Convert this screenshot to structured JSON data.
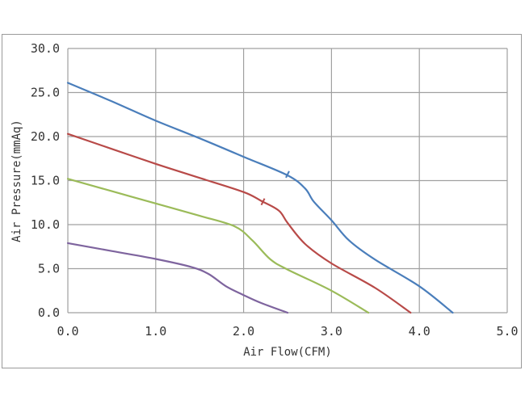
{
  "chart_data": {
    "type": "line",
    "title": "",
    "xlabel": "Air Flow(CFM)",
    "ylabel": "Air Pressure(mmAq)",
    "xlim": [
      0,
      5
    ],
    "ylim": [
      0,
      30
    ],
    "x_ticks": [
      "0.0",
      "1.0",
      "2.0",
      "3.0",
      "4.0",
      "5.0"
    ],
    "y_ticks": [
      "0.0",
      "5.0",
      "10.0",
      "15.0",
      "20.0",
      "25.0",
      "30.0"
    ],
    "grid": true,
    "legend": "none",
    "series": [
      {
        "color": "#4a7ebb",
        "points": [
          [
            0.0,
            26.1
          ],
          [
            0.5,
            24.0
          ],
          [
            1.0,
            21.8
          ],
          [
            1.5,
            19.8
          ],
          [
            2.0,
            17.7
          ],
          [
            2.5,
            15.6
          ],
          [
            2.7,
            14.1
          ],
          [
            2.8,
            12.6
          ],
          [
            3.0,
            10.5
          ],
          [
            3.2,
            8.2
          ],
          [
            3.5,
            6.0
          ],
          [
            4.0,
            3.0
          ],
          [
            4.38,
            0.0
          ]
        ],
        "marker_at": [
          2.5,
          15.7
        ]
      },
      {
        "color": "#b84a48",
        "points": [
          [
            0.0,
            20.3
          ],
          [
            0.5,
            18.6
          ],
          [
            1.0,
            16.9
          ],
          [
            1.5,
            15.3
          ],
          [
            2.0,
            13.7
          ],
          [
            2.2,
            12.7
          ],
          [
            2.4,
            11.6
          ],
          [
            2.5,
            10.2
          ],
          [
            2.7,
            7.8
          ],
          [
            3.0,
            5.6
          ],
          [
            3.5,
            2.8
          ],
          [
            3.9,
            0.0
          ]
        ],
        "marker_at": [
          2.22,
          12.6
        ]
      },
      {
        "color": "#9bbb59",
        "points": [
          [
            0.0,
            15.2
          ],
          [
            0.5,
            13.8
          ],
          [
            1.0,
            12.4
          ],
          [
            1.5,
            11.0
          ],
          [
            1.9,
            9.8
          ],
          [
            2.1,
            8.2
          ],
          [
            2.3,
            6.1
          ],
          [
            2.5,
            4.9
          ],
          [
            3.0,
            2.5
          ],
          [
            3.42,
            0.0
          ]
        ],
        "marker_at": null
      },
      {
        "color": "#7e649e",
        "points": [
          [
            0.0,
            7.9
          ],
          [
            0.5,
            7.0
          ],
          [
            1.0,
            6.1
          ],
          [
            1.4,
            5.2
          ],
          [
            1.6,
            4.4
          ],
          [
            1.8,
            3.0
          ],
          [
            2.0,
            2.0
          ],
          [
            2.2,
            1.1
          ],
          [
            2.5,
            0.0
          ]
        ],
        "marker_at": null
      }
    ]
  },
  "colors": {
    "grid": "#a0a0a0",
    "frame": "#9a9a9a"
  }
}
